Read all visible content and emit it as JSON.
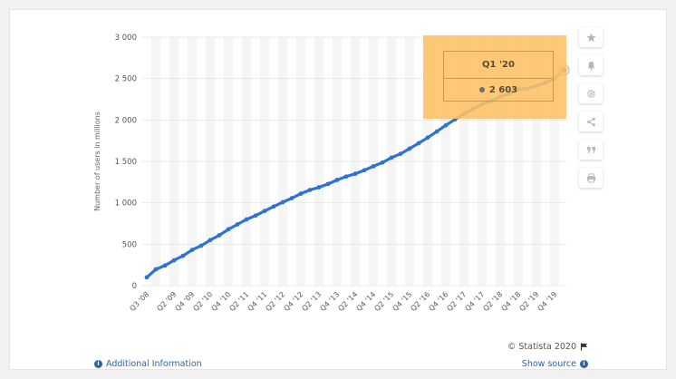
{
  "chart_data": {
    "type": "line",
    "title": "",
    "ylabel": "Number of users in millions",
    "xlabel": "",
    "ylim": [
      0,
      3000
    ],
    "yticks": [
      0,
      500,
      1000,
      1500,
      2000,
      2500,
      3000
    ],
    "ytick_labels": [
      "0",
      "500",
      "1 000",
      "1 500",
      "2 000",
      "2 500",
      "3 000"
    ],
    "grid": true,
    "x": [
      "Q3 '08",
      "Q4 '08",
      "Q1 '09",
      "Q2 '09",
      "Q3 '09",
      "Q4 '09",
      "Q1 '10",
      "Q2 '10",
      "Q3 '10",
      "Q4 '10",
      "Q1 '11",
      "Q2 '11",
      "Q3 '11",
      "Q4 '11",
      "Q1 '12",
      "Q2 '12",
      "Q3 '12",
      "Q4 '12",
      "Q1 '13",
      "Q2 '13",
      "Q3 '13",
      "Q4 '13",
      "Q1 '14",
      "Q2 '14",
      "Q3 '14",
      "Q4 '14",
      "Q1 '15",
      "Q2 '15",
      "Q3 '15",
      "Q4 '15",
      "Q1 '16",
      "Q2 '16",
      "Q3 '16",
      "Q4 '16",
      "Q1 '17",
      "Q2 '17",
      "Q3 '17",
      "Q4 '17",
      "Q1 '18",
      "Q2 '18",
      "Q3 '18",
      "Q4 '18",
      "Q1 '19",
      "Q2 '19",
      "Q3 '19",
      "Q4 '19",
      "Q1 '20"
    ],
    "xtick_labels": [
      "Q3 '08",
      "Q2 '09",
      "Q4 '09",
      "Q2 '10",
      "Q4 '10",
      "Q2 '11",
      "Q4 '11",
      "Q2 '12",
      "Q4 '12",
      "Q2 '13",
      "Q4 '13",
      "Q2 '14",
      "Q4 '14",
      "Q2 '15",
      "Q4 '15",
      "Q2 '16",
      "Q4 '16",
      "Q2 '17",
      "Q4 '17",
      "Q2 '18",
      "Q4 '18",
      "Q2 '19",
      "Q4 '19"
    ],
    "series": [
      {
        "values": [
          100,
          197,
          242,
          305,
          360,
          431,
          482,
          550,
          608,
          680,
          739,
          799,
          845,
          901,
          955,
          1007,
          1056,
          1110,
          1155,
          1187,
          1227,
          1276,
          1317,
          1350,
          1393,
          1441,
          1486,
          1545,
          1591,
          1654,
          1719,
          1787,
          1860,
          1936,
          2006,
          2075,
          2132,
          2190,
          2230,
          2280,
          2320,
          2370,
          2380,
          2410,
          2450,
          2500,
          2603
        ],
        "color": "#2f72d6"
      }
    ],
    "highlight": {
      "index": 46,
      "label": "Q1 '20",
      "value_label": "2 603"
    }
  },
  "colors": {
    "line": "#2f72d6",
    "hover_line": "#8a8a8a",
    "tooltip_bg": "#fdc165"
  },
  "toolbar": [
    {
      "name": "star-icon"
    },
    {
      "name": "bell-icon"
    },
    {
      "name": "gear-icon"
    },
    {
      "name": "share-icon"
    },
    {
      "name": "quote-icon"
    },
    {
      "name": "print-icon"
    }
  ],
  "footer": {
    "copyright": "© Statista 2020",
    "additional_info": "Additional Information",
    "show_source": "Show source"
  }
}
